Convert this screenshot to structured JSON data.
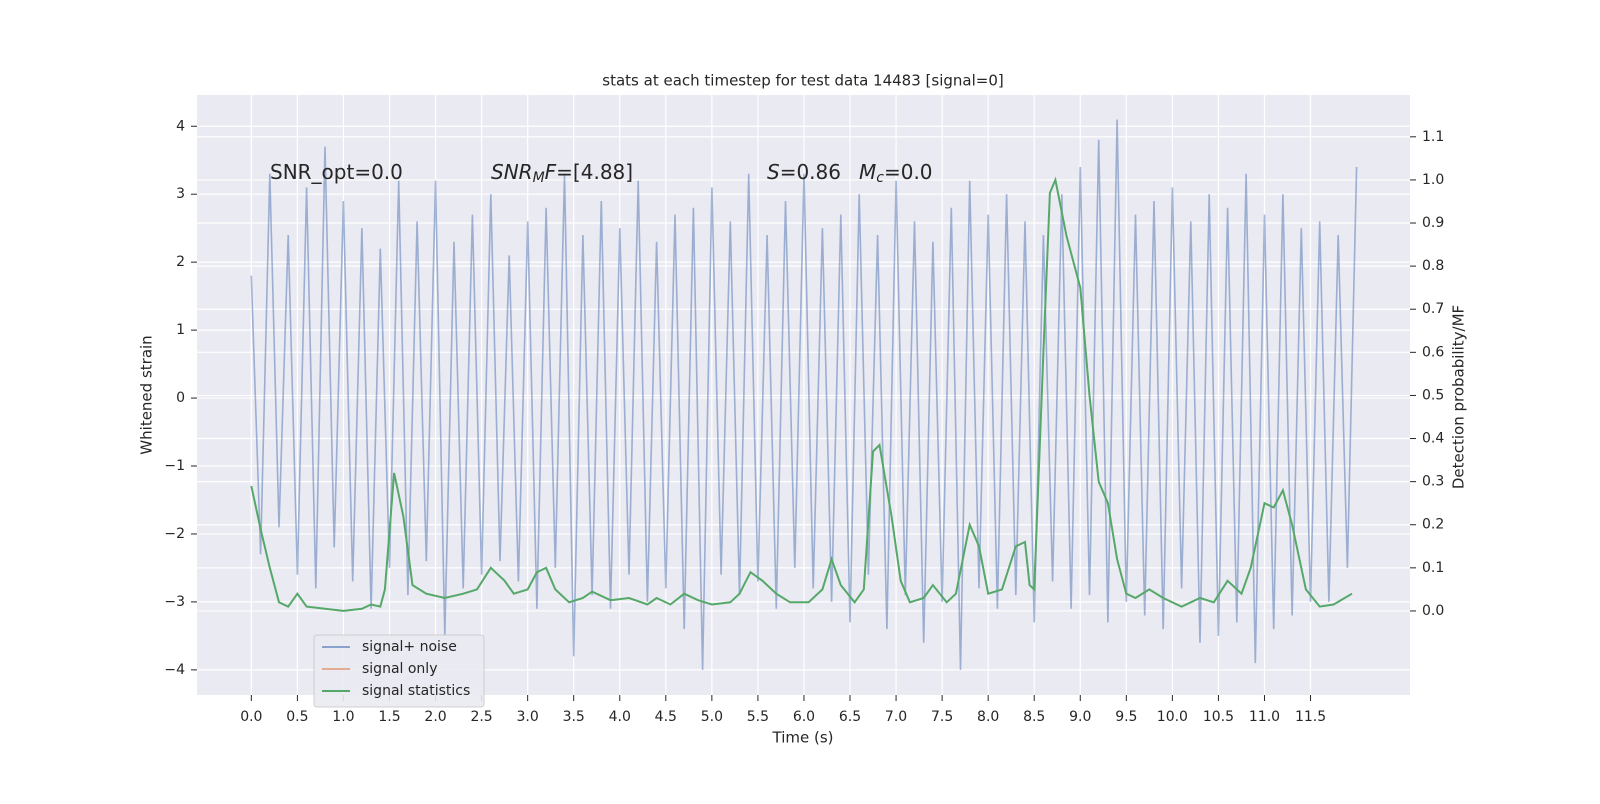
{
  "chart_data": {
    "type": "line",
    "title": "stats at each timestep for test data 14483 [signal=0]",
    "xlabel": "Time (s)",
    "ylabel": "Whitened strain",
    "y2label": "Detection probability/MF",
    "background": "#eaeaf2",
    "grid": true,
    "legend": "lower left",
    "xlim": [
      -0.59,
      12.58
    ],
    "ylim": [
      -4.37,
      4.46
    ],
    "y2lim": [
      -0.195,
      1.197
    ],
    "xticks": [
      {
        "value": 0,
        "label": "0.0"
      },
      0.5,
      {
        "value": 1,
        "label": "1.0"
      },
      1.5,
      {
        "value": 2,
        "label": "2.0"
      },
      2.5,
      {
        "value": 3,
        "label": "3.0"
      },
      3.5,
      {
        "value": 4,
        "label": "4.0"
      },
      4.5,
      {
        "value": 5,
        "label": "5.0"
      },
      5.5,
      {
        "value": 6,
        "label": "6.0"
      },
      6.5,
      {
        "value": 7,
        "label": "7.0"
      },
      7.5,
      {
        "value": 8,
        "label": "8.0"
      },
      8.5,
      {
        "value": 9,
        "label": "9.0"
      },
      9.5,
      {
        "value": 10,
        "label": "10.0"
      },
      10.5,
      {
        "value": 11,
        "label": "11.0"
      },
      11.5
    ],
    "yticks": [
      {
        "value": -4,
        "label": "−4"
      },
      {
        "value": -3,
        "label": "−3"
      },
      {
        "value": -2,
        "label": "−2"
      },
      {
        "value": -1,
        "label": "−1"
      },
      0,
      1,
      2,
      3,
      4
    ],
    "y2ticks": [
      {
        "value": 0,
        "label": "0.0"
      },
      0.1,
      0.2,
      0.3,
      0.4,
      0.5,
      0.6,
      0.7,
      0.8,
      0.9,
      {
        "value": 1,
        "label": "1.0"
      },
      1.1
    ],
    "annotations": [
      [
        {
          "text": "SNR_opt=0.0"
        }
      ],
      [
        {
          "text": "SNR",
          "style": "italic"
        },
        {
          "text": "M",
          "style": "sub"
        },
        {
          "text": "F",
          "style": "italic"
        },
        {
          "text": "=[4.88]"
        }
      ],
      [
        {
          "text": "S",
          "style": "italic"
        },
        {
          "text": "=0.86"
        }
      ],
      [
        {
          "text": "M",
          "style": "italic"
        },
        {
          "text": "c",
          "style": "sub"
        },
        {
          "text": "=0.0"
        }
      ]
    ],
    "series": [
      {
        "name": "signal+ noise",
        "color": "#4c72b0",
        "x": [
          0.0,
          0.1,
          0.2,
          0.3,
          0.4,
          0.5,
          0.6,
          0.7,
          0.8,
          0.9,
          1.0,
          1.1,
          1.2,
          1.3,
          1.4,
          1.5,
          1.6,
          1.7,
          1.8,
          1.9,
          2.0,
          2.1,
          2.2,
          2.3,
          2.4,
          2.5,
          2.6,
          2.7,
          2.8,
          2.9,
          3.0,
          3.1,
          3.2,
          3.3,
          3.4,
          3.5,
          3.6,
          3.7,
          3.8,
          3.9,
          4.0,
          4.1,
          4.2,
          4.3,
          4.4,
          4.5,
          4.6,
          4.7,
          4.8,
          4.9,
          5.0,
          5.1,
          5.2,
          5.3,
          5.4,
          5.5,
          5.6,
          5.7,
          5.8,
          5.9,
          6.0,
          6.1,
          6.2,
          6.3,
          6.4,
          6.5,
          6.6,
          6.7,
          6.8,
          6.9,
          7.0,
          7.1,
          7.2,
          7.3,
          7.4,
          7.5,
          7.6,
          7.7,
          7.8,
          7.9,
          8.0,
          8.1,
          8.2,
          8.3,
          8.4,
          8.5,
          8.6,
          8.7,
          8.8,
          8.9,
          9.0,
          9.1,
          9.2,
          9.3,
          9.4,
          9.5,
          9.6,
          9.7,
          9.8,
          9.9,
          10.0,
          10.1,
          10.2,
          10.3,
          10.4,
          10.5,
          10.6,
          10.7,
          10.8,
          10.9,
          11.0,
          11.1,
          11.2,
          11.3,
          11.4,
          11.5,
          11.6,
          11.7,
          11.8,
          11.9,
          12.0
        ],
        "values": [
          1.8,
          -2.3,
          3.3,
          -1.9,
          2.4,
          -2.6,
          3.1,
          -2.8,
          3.7,
          -2.2,
          2.9,
          -2.7,
          2.5,
          -3.1,
          2.2,
          -2.5,
          3.2,
          -2.9,
          2.6,
          -2.4,
          3.2,
          -3.5,
          2.3,
          -2.8,
          2.7,
          -2.6,
          3.0,
          -2.4,
          2.1,
          -2.7,
          2.6,
          -3.1,
          2.8,
          -2.5,
          3.3,
          -3.8,
          2.4,
          -2.9,
          2.9,
          -3.1,
          2.5,
          -2.6,
          3.2,
          -3.0,
          2.3,
          -2.8,
          2.7,
          -3.4,
          2.8,
          -4.0,
          3.1,
          -2.6,
          2.6,
          -2.9,
          3.3,
          -2.7,
          2.4,
          -3.1,
          2.9,
          -2.5,
          3.3,
          -2.8,
          2.5,
          -3.0,
          2.7,
          -3.3,
          3.0,
          -2.6,
          2.4,
          -3.4,
          3.2,
          -2.9,
          2.6,
          -3.6,
          2.3,
          -3.0,
          2.8,
          -4.0,
          3.2,
          -2.8,
          2.7,
          -3.1,
          3.0,
          -2.9,
          2.6,
          -3.3,
          2.4,
          -2.7,
          3.0,
          -3.1,
          3.4,
          -2.9,
          3.8,
          -3.3,
          4.1,
          -3.0,
          2.7,
          -3.2,
          2.9,
          -3.4,
          3.1,
          -2.8,
          2.6,
          -3.6,
          3.0,
          -3.5,
          2.8,
          -3.3,
          3.3,
          -3.9,
          2.7,
          -3.4,
          3.0,
          -3.2,
          2.5,
          -3.0,
          2.6,
          -3.0,
          2.4,
          -2.5,
          3.4
        ]
      },
      {
        "name": "signal only",
        "color": "#dd8452"
      },
      {
        "name": "signal statistics",
        "color": "#55a868",
        "axis": "y2",
        "x": [
          0,
          0.1,
          0.2,
          0.3,
          0.4,
          0.5,
          0.6,
          0.8,
          1.0,
          1.2,
          1.3,
          1.4,
          1.45,
          1.55,
          1.65,
          1.75,
          1.9,
          2.1,
          2.3,
          2.45,
          2.6,
          2.75,
          2.85,
          3.0,
          3.1,
          3.2,
          3.3,
          3.45,
          3.6,
          3.7,
          3.9,
          4.1,
          4.3,
          4.4,
          4.55,
          4.7,
          4.85,
          5.0,
          5.2,
          5.3,
          5.42,
          5.55,
          5.7,
          5.85,
          6.05,
          6.2,
          6.3,
          6.4,
          6.55,
          6.65,
          6.75,
          6.82,
          6.95,
          7.05,
          7.15,
          7.3,
          7.4,
          7.55,
          7.65,
          7.8,
          7.9,
          8.0,
          8.15,
          8.3,
          8.4,
          8.45,
          8.5,
          8.6,
          8.67,
          8.73,
          8.85,
          9.0,
          9.1,
          9.2,
          9.3,
          9.4,
          9.5,
          9.6,
          9.75,
          9.9,
          10.1,
          10.3,
          10.45,
          10.6,
          10.75,
          10.85,
          11.0,
          11.1,
          11.2,
          11.3,
          11.45,
          11.6,
          11.75,
          11.95
        ],
        "values": [
          0.29,
          0.19,
          0.1,
          0.02,
          0.01,
          0.04,
          0.01,
          0.005,
          0.0,
          0.005,
          0.015,
          0.01,
          0.05,
          0.32,
          0.22,
          0.06,
          0.04,
          0.03,
          0.04,
          0.05,
          0.1,
          0.07,
          0.04,
          0.05,
          0.09,
          0.1,
          0.05,
          0.02,
          0.03,
          0.045,
          0.025,
          0.03,
          0.015,
          0.03,
          0.015,
          0.04,
          0.025,
          0.015,
          0.02,
          0.04,
          0.09,
          0.07,
          0.04,
          0.02,
          0.02,
          0.05,
          0.12,
          0.06,
          0.02,
          0.05,
          0.37,
          0.385,
          0.22,
          0.07,
          0.02,
          0.03,
          0.06,
          0.02,
          0.04,
          0.2,
          0.15,
          0.04,
          0.05,
          0.15,
          0.16,
          0.06,
          0.05,
          0.6,
          0.97,
          1.0,
          0.87,
          0.75,
          0.5,
          0.3,
          0.25,
          0.12,
          0.04,
          0.03,
          0.05,
          0.03,
          0.01,
          0.03,
          0.02,
          0.07,
          0.04,
          0.1,
          0.25,
          0.24,
          0.28,
          0.2,
          0.05,
          0.01,
          0.015,
          0.04
        ]
      }
    ]
  }
}
